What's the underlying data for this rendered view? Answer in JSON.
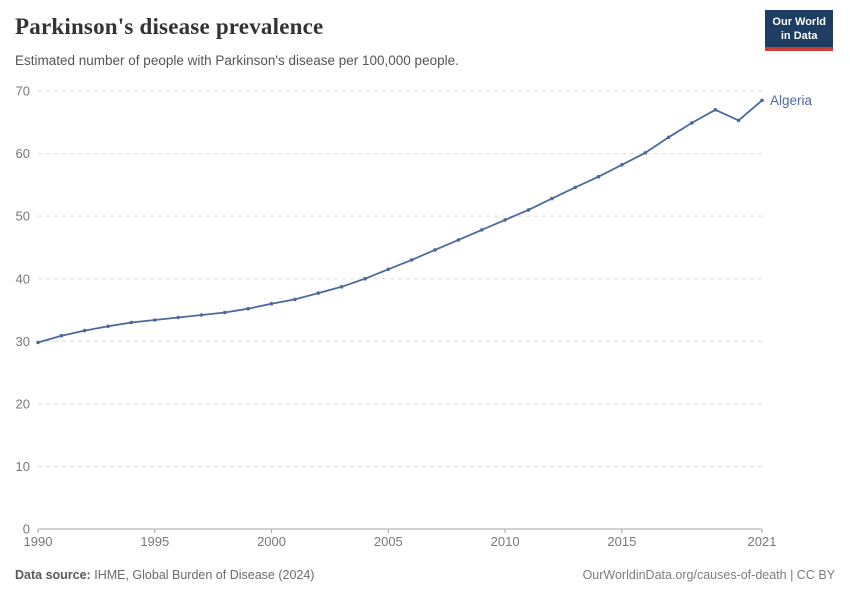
{
  "header": {
    "title": "Parkinson's disease prevalence",
    "subtitle": "Estimated number of people with Parkinson's disease per 100,000 people.",
    "logo": {
      "line1": "Our World",
      "line2": "in Data"
    }
  },
  "chart_data": {
    "type": "line",
    "title": "Parkinson's disease prevalence",
    "subtitle": "Estimated number of people with Parkinson's disease per 100,000 people.",
    "xlabel": "",
    "ylabel": "",
    "x": [
      1990,
      1991,
      1992,
      1993,
      1994,
      1995,
      1996,
      1997,
      1998,
      1999,
      2000,
      2001,
      2002,
      2003,
      2004,
      2005,
      2006,
      2007,
      2008,
      2009,
      2010,
      2011,
      2012,
      2013,
      2014,
      2015,
      2016,
      2017,
      2018,
      2019,
      2020,
      2021
    ],
    "series": [
      {
        "name": "Algeria",
        "color": "#4c6a9c",
        "values": [
          29.8,
          30.9,
          31.7,
          32.4,
          33.0,
          33.4,
          33.8,
          34.2,
          34.6,
          35.2,
          36.0,
          36.7,
          37.7,
          38.7,
          40.0,
          41.5,
          43.0,
          44.6,
          46.2,
          47.8,
          49.4,
          51.0,
          52.8,
          54.6,
          56.3,
          58.2,
          60.1,
          62.6,
          64.9,
          67.0,
          65.3,
          68.5
        ]
      }
    ],
    "xlim": [
      1990,
      2021
    ],
    "ylim": [
      0,
      70
    ],
    "x_ticks": [
      1990,
      1995,
      2000,
      2005,
      2010,
      2015,
      2021
    ],
    "y_ticks": [
      0,
      10,
      20,
      30,
      40,
      50,
      60,
      70
    ],
    "grid": "horizontal-dashed",
    "legend_position": "line-end-label"
  },
  "footer": {
    "source_label": "Data source:",
    "source_text": "IHME, Global Burden of Disease (2024)",
    "credit": "OurWorldinData.org/causes-of-death | CC BY"
  },
  "colors": {
    "series_line": "#4c6a9c",
    "grid_line": "#dcdcdc",
    "axis_line": "#a5a5a5",
    "tick_label": "#787878",
    "logo_background": "#1d3d63",
    "logo_accent": "#cd3d34"
  }
}
